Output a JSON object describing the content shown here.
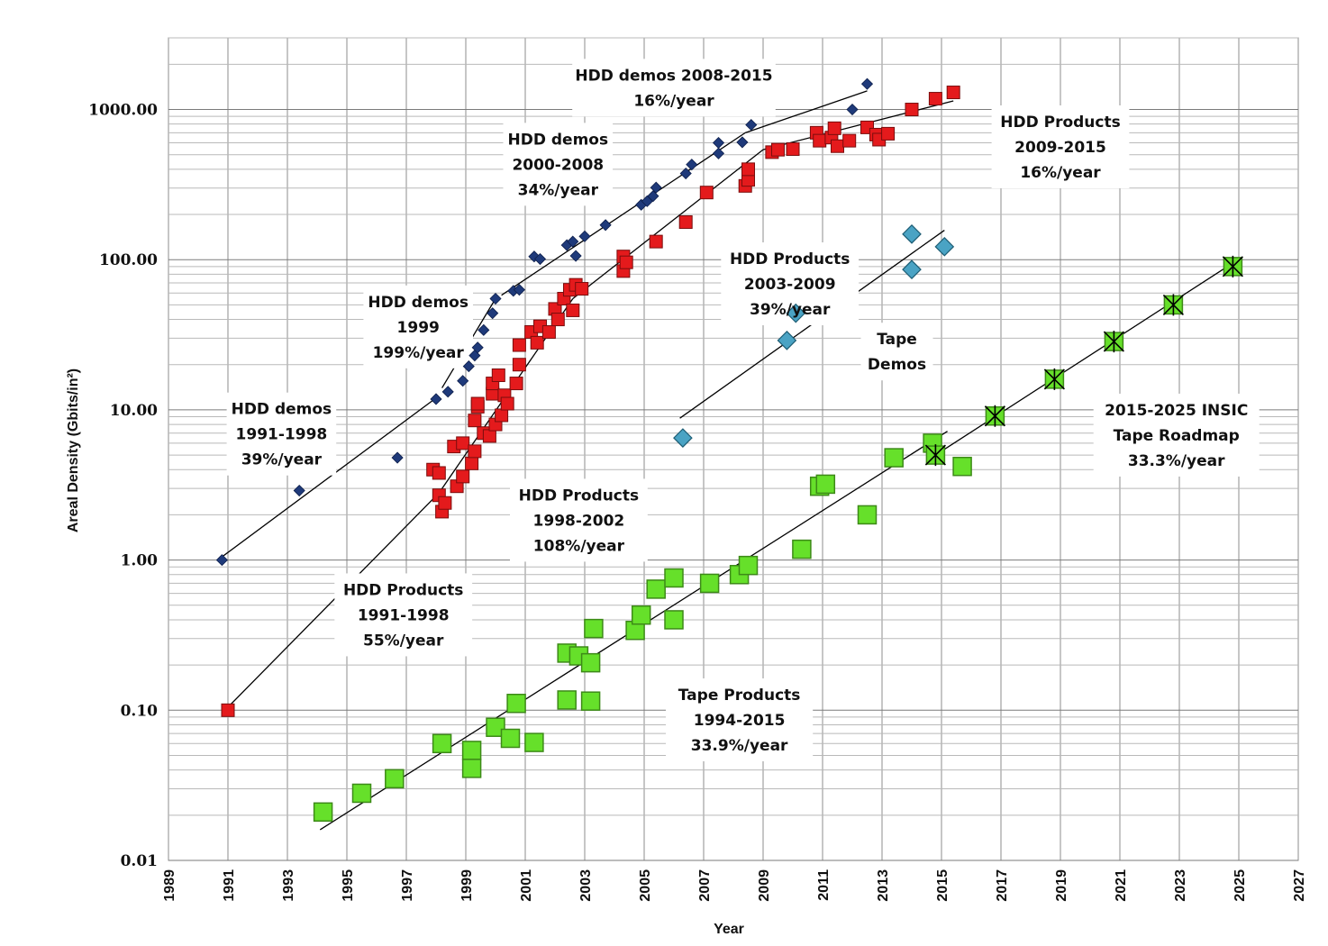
{
  "chart_data": {
    "type": "scatter",
    "xlabel": "Year",
    "ylabel": "Areal Density (Gbits/in²)",
    "y_scale": "log",
    "xlim": [
      1989,
      2027
    ],
    "ylim": [
      0.01,
      3000
    ],
    "x_ticks": [
      "1989",
      "1991",
      "1993",
      "1995",
      "1997",
      "1999",
      "2001",
      "2003",
      "2005",
      "2007",
      "2009",
      "2011",
      "2013",
      "2015",
      "2017",
      "2019",
      "2021",
      "2023",
      "2025",
      "2027"
    ],
    "y_ticks": [
      {
        "value": 0.01,
        "label": "0.01"
      },
      {
        "value": 0.1,
        "label": "0.10"
      },
      {
        "value": 1,
        "label": "1.00"
      },
      {
        "value": 10,
        "label": "10.00"
      },
      {
        "value": 100,
        "label": "100.00"
      },
      {
        "value": 1000,
        "label": "1000.00"
      }
    ],
    "grid": true,
    "colors": {
      "hdd_demos": "#1f3a7a",
      "hdd_products": "#e41a1c",
      "tape_demos": "#4aa3c4",
      "tape_products": "#66e02a",
      "tape_roadmap": "#66e02a"
    },
    "series": [
      {
        "key": "hdd_demos",
        "marker": "diamond",
        "points": [
          [
            1990.8,
            1.0
          ],
          [
            1993.4,
            2.9
          ],
          [
            1996.7,
            4.8
          ],
          [
            1998.0,
            11.8
          ],
          [
            1998.4,
            13.2
          ],
          [
            1998.9,
            15.6
          ],
          [
            1999.1,
            19.5
          ],
          [
            1999.3,
            23
          ],
          [
            1999.4,
            26
          ],
          [
            1999.6,
            34
          ],
          [
            1999.9,
            44
          ],
          [
            2000.0,
            55
          ],
          [
            2000.6,
            62
          ],
          [
            2000.8,
            63
          ],
          [
            2001.3,
            105
          ],
          [
            2001.5,
            101
          ],
          [
            2002.4,
            125
          ],
          [
            2002.6,
            132
          ],
          [
            2002.7,
            106
          ],
          [
            2003.0,
            143
          ],
          [
            2003.7,
            170
          ],
          [
            2004.9,
            232
          ],
          [
            2005.1,
            245
          ],
          [
            2005.3,
            265
          ],
          [
            2005.4,
            302
          ],
          [
            2006.4,
            375
          ],
          [
            2006.6,
            430
          ],
          [
            2007.5,
            510
          ],
          [
            2007.5,
            600
          ],
          [
            2008.3,
            605
          ],
          [
            2008.6,
            790
          ],
          [
            2012.0,
            1000
          ],
          [
            2012.5,
            1480
          ]
        ]
      },
      {
        "key": "hdd_products",
        "marker": "square",
        "points": [
          [
            1991.0,
            0.1
          ],
          [
            1997.9,
            4.0
          ],
          [
            1998.1,
            3.8
          ],
          [
            1998.1,
            2.7
          ],
          [
            1998.2,
            2.1
          ],
          [
            1998.3,
            2.4
          ],
          [
            1998.6,
            5.7
          ],
          [
            1998.7,
            3.1
          ],
          [
            1998.9,
            6.0
          ],
          [
            1998.9,
            3.6
          ],
          [
            1999.2,
            4.4
          ],
          [
            1999.3,
            5.3
          ],
          [
            1999.3,
            8.5
          ],
          [
            1999.4,
            10.5
          ],
          [
            1999.4,
            11.0
          ],
          [
            1999.6,
            7.0
          ],
          [
            1999.8,
            6.7
          ],
          [
            1999.9,
            12.8
          ],
          [
            1999.9,
            15
          ],
          [
            2000.0,
            8.0
          ],
          [
            2000.1,
            17
          ],
          [
            2000.2,
            9.2
          ],
          [
            2000.3,
            12.5
          ],
          [
            2000.4,
            11.0
          ],
          [
            2000.7,
            15
          ],
          [
            2000.8,
            20
          ],
          [
            2000.8,
            27
          ],
          [
            2001.2,
            33
          ],
          [
            2001.4,
            28
          ],
          [
            2001.5,
            36
          ],
          [
            2001.8,
            33
          ],
          [
            2002.0,
            47
          ],
          [
            2002.1,
            40
          ],
          [
            2002.3,
            55
          ],
          [
            2002.5,
            63
          ],
          [
            2002.6,
            46
          ],
          [
            2002.7,
            68
          ],
          [
            2002.9,
            64
          ],
          [
            2004.3,
            84
          ],
          [
            2004.3,
            105
          ],
          [
            2004.4,
            96
          ],
          [
            2005.4,
            132
          ],
          [
            2006.4,
            178
          ],
          [
            2007.1,
            280
          ],
          [
            2008.4,
            310
          ],
          [
            2008.5,
            340
          ],
          [
            2008.5,
            400
          ],
          [
            2009.3,
            520
          ],
          [
            2009.5,
            540
          ],
          [
            2010.0,
            545
          ],
          [
            2010.8,
            700
          ],
          [
            2010.9,
            620
          ],
          [
            2011.3,
            650
          ],
          [
            2011.4,
            750
          ],
          [
            2011.5,
            570
          ],
          [
            2011.9,
            620
          ],
          [
            2012.5,
            760
          ],
          [
            2012.8,
            680
          ],
          [
            2012.9,
            630
          ],
          [
            2013.2,
            690
          ],
          [
            2014.0,
            1000
          ],
          [
            2014.8,
            1180
          ],
          [
            2015.4,
            1300
          ]
        ]
      },
      {
        "key": "tape_demos",
        "marker": "diamond-large",
        "points": [
          [
            2006.3,
            6.5
          ],
          [
            2009.8,
            29
          ],
          [
            2010.1,
            44
          ],
          [
            2014.0,
            148
          ],
          [
            2014.0,
            86
          ],
          [
            2015.1,
            122
          ]
        ]
      },
      {
        "key": "tape_products",
        "marker": "square-large",
        "points": [
          [
            1994.2,
            0.021
          ],
          [
            1995.5,
            0.028
          ],
          [
            1996.6,
            0.035
          ],
          [
            1998.2,
            0.06
          ],
          [
            1999.2,
            0.054
          ],
          [
            1999.2,
            0.041
          ],
          [
            2000.0,
            0.077
          ],
          [
            2000.5,
            0.065
          ],
          [
            2000.7,
            0.111
          ],
          [
            2001.3,
            0.061
          ],
          [
            2002.4,
            0.24
          ],
          [
            2002.4,
            0.117
          ],
          [
            2002.8,
            0.23
          ],
          [
            2003.2,
            0.207
          ],
          [
            2003.2,
            0.115
          ],
          [
            2003.3,
            0.35
          ],
          [
            2004.7,
            0.34
          ],
          [
            2004.9,
            0.43
          ],
          [
            2005.4,
            0.64
          ],
          [
            2006.0,
            0.4
          ],
          [
            2006.0,
            0.76
          ],
          [
            2007.2,
            0.7
          ],
          [
            2008.2,
            0.8
          ],
          [
            2008.5,
            0.92
          ],
          [
            2010.3,
            1.18
          ],
          [
            2010.9,
            3.1
          ],
          [
            2011.1,
            3.2
          ],
          [
            2012.5,
            2.0
          ],
          [
            2013.4,
            4.8
          ],
          [
            2014.7,
            6.0
          ],
          [
            2015.7,
            4.2
          ]
        ]
      },
      {
        "key": "tape_roadmap",
        "marker": "square-star",
        "points": [
          [
            2014.8,
            5.0
          ],
          [
            2016.8,
            9.1
          ],
          [
            2018.8,
            16
          ],
          [
            2020.8,
            28.5
          ],
          [
            2022.8,
            50
          ],
          [
            2024.8,
            90
          ]
        ]
      }
    ],
    "trend_lines": [
      [
        [
          1990.8,
          1.05
        ],
        [
          1998.0,
          12
        ]
      ],
      [
        [
          1998.2,
          14
        ],
        [
          2000.0,
          55
        ]
      ],
      [
        [
          2000.2,
          58
        ],
        [
          2008.4,
          700
        ]
      ],
      [
        [
          2008.4,
          700
        ],
        [
          2012.5,
          1330
        ]
      ],
      [
        [
          1990.9,
          0.1
        ],
        [
          1998.1,
          2.8
        ]
      ],
      [
        [
          1998.1,
          2.8
        ],
        [
          2002.6,
          55
        ]
      ],
      [
        [
          2002.6,
          55
        ],
        [
          2009.0,
          540
        ]
      ],
      [
        [
          2009.0,
          540
        ],
        [
          2015.4,
          1140
        ]
      ],
      [
        [
          2006.2,
          8.8
        ],
        [
          2015.1,
          157
        ]
      ],
      [
        [
          1994.1,
          0.016
        ],
        [
          2015.2,
          7.2
        ]
      ],
      [
        [
          2014.8,
          5.0
        ],
        [
          2024.8,
          95
        ]
      ]
    ],
    "annotations": [
      {
        "lines": [
          "HDD demos 2008-2015",
          "16%/year"
        ],
        "at": [
          2006.0,
          2000
        ]
      },
      {
        "lines": [
          "HDD demos",
          "2000-2008",
          "34%/year"
        ],
        "at": [
          2002.1,
          750
        ]
      },
      {
        "lines": [
          "HDD Products",
          "2009-2015",
          "16%/year"
        ],
        "at": [
          2019.0,
          980
        ]
      },
      {
        "lines": [
          "HDD Products",
          "2003-2009",
          "39%/year"
        ],
        "at": [
          2009.9,
          120
        ]
      },
      {
        "lines": [
          "HDD demos",
          "1999",
          "199%/year"
        ],
        "at": [
          1997.4,
          62
        ]
      },
      {
        "lines": [
          "Tape",
          "Demos"
        ],
        "at": [
          2013.5,
          35
        ]
      },
      {
        "lines": [
          "HDD demos",
          "1991-1998",
          "39%/year"
        ],
        "at": [
          1992.8,
          12
        ]
      },
      {
        "lines": [
          "2015-2025 INSIC",
          "Tape Roadmap",
          "33.3%/year"
        ],
        "at": [
          2022.9,
          11.8
        ]
      },
      {
        "lines": [
          "HDD Products",
          "1998-2002",
          "108%/year"
        ],
        "at": [
          2002.8,
          3.2
        ]
      },
      {
        "lines": [
          "HDD Products",
          "1991-1998",
          "55%/year"
        ],
        "at": [
          1996.9,
          0.75
        ]
      },
      {
        "lines": [
          "Tape Products",
          "1994-2015",
          "33.9%/year"
        ],
        "at": [
          2008.2,
          0.15
        ]
      }
    ]
  }
}
